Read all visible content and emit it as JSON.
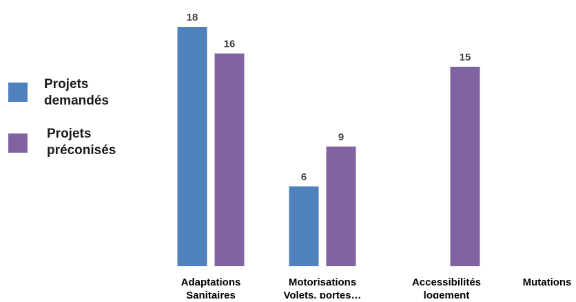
{
  "chart_data": {
    "type": "bar",
    "title": "",
    "xlabel": "",
    "ylabel": "",
    "categories": [
      [
        "Adaptations",
        "Sanitaires"
      ],
      [
        "Motorisations",
        "Volets, portes…"
      ],
      [
        "Accessibilités",
        "logement"
      ],
      [
        "Mutations"
      ]
    ],
    "series": [
      {
        "name": "Projets demandés",
        "legend_lines": [
          "Projets",
          "demandés"
        ],
        "color": "#4f81bd",
        "values": [
          18,
          6,
          null,
          null
        ]
      },
      {
        "name": "Projets préconisés",
        "legend_lines": [
          "Projets",
          "préconisés"
        ],
        "color": "#8064a2",
        "values": [
          16,
          9,
          15,
          null
        ]
      }
    ],
    "ylim": [
      0,
      18
    ],
    "grid": false,
    "legend_position": "left",
    "data_labels": true
  }
}
